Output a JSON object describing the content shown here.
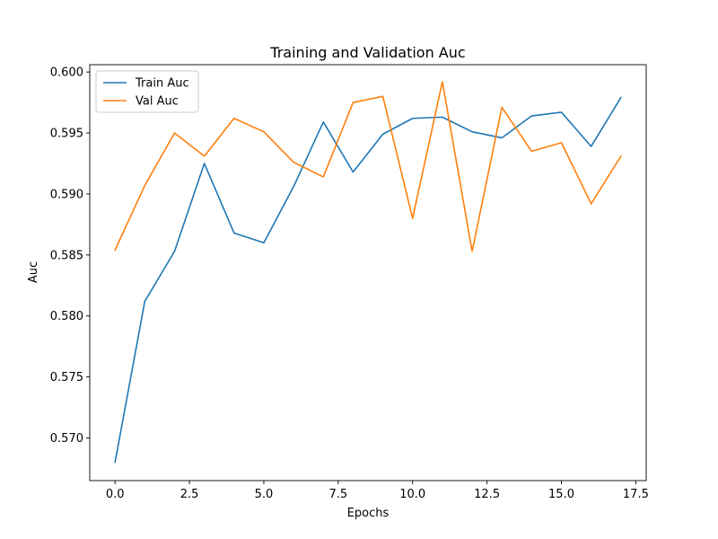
{
  "chart_data": {
    "type": "line",
    "title": "Training and Validation Auc",
    "xlabel": "Epochs",
    "ylabel": "Auc",
    "xlim": [
      -0.85,
      17.85
    ],
    "ylim": [
      0.5665,
      0.6006
    ],
    "x_ticks": [
      0.0,
      2.5,
      5.0,
      7.5,
      10.0,
      12.5,
      15.0,
      17.5
    ],
    "x_tick_labels": [
      "0.0",
      "2.5",
      "5.0",
      "7.5",
      "10.0",
      "12.5",
      "15.0",
      "17.5"
    ],
    "y_ticks": [
      0.57,
      0.575,
      0.58,
      0.585,
      0.59,
      0.595,
      0.6
    ],
    "y_tick_labels": [
      "0.570",
      "0.575",
      "0.580",
      "0.585",
      "0.590",
      "0.595",
      "0.600"
    ],
    "grid": false,
    "legend_position": "top-left",
    "x": [
      0,
      1,
      2,
      3,
      4,
      5,
      6,
      7,
      8,
      9,
      10,
      11,
      12,
      13,
      14,
      15,
      16,
      17
    ],
    "series": [
      {
        "name": "Train Auc",
        "color": "#1f77b4",
        "values": [
          0.568,
          0.5812,
          0.5853,
          0.5925,
          0.5868,
          0.586,
          0.5906,
          0.5959,
          0.5918,
          0.5949,
          0.5962,
          0.5963,
          0.5951,
          0.5946,
          0.5964,
          0.5967,
          0.5939,
          0.5979
        ]
      },
      {
        "name": "Val Auc",
        "color": "#ff7f0e",
        "values": [
          0.5854,
          0.5907,
          0.595,
          0.5931,
          0.5962,
          0.5951,
          0.5926,
          0.5914,
          0.5975,
          0.598,
          0.588,
          0.5992,
          0.5853,
          0.5971,
          0.5935,
          0.5942,
          0.5892,
          0.5931
        ]
      }
    ]
  }
}
